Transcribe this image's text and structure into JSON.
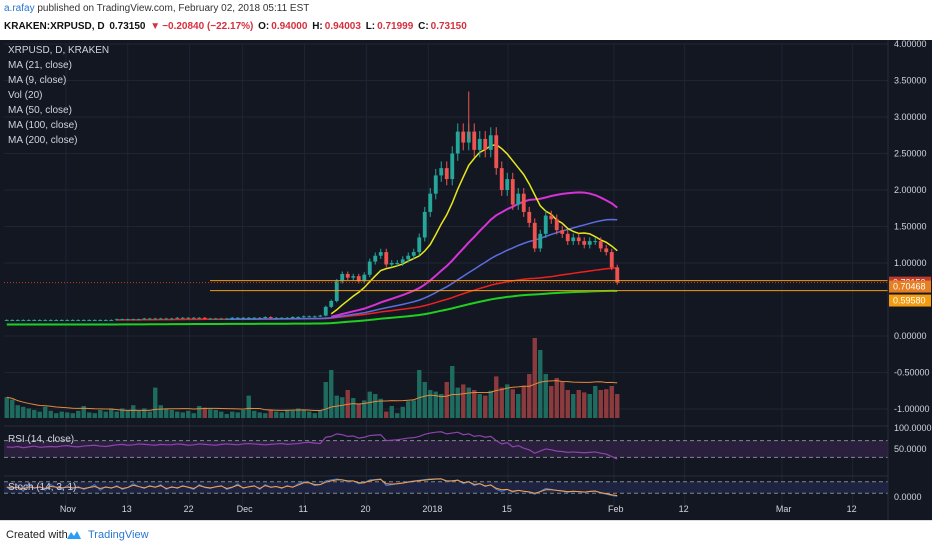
{
  "header": {
    "user": "a.rafay",
    "published_text": "published on TradingView.com, February 02, 2018 05:11 EST",
    "symbol": "KRAKEN:XRPUSD, D",
    "price": "0.73150",
    "arrow": "▼",
    "change": "−0.20840 (−22.17%)",
    "o_label": "O:",
    "o_val": "0.94000",
    "h_label": "H:",
    "h_val": "0.94003",
    "l_label": "L:",
    "l_val": "0.71999",
    "c_label": "C:",
    "c_val": "0.73150"
  },
  "legend": [
    "XRPUSD, D, KRAKEN",
    "MA (21, close)",
    "MA (9, close)",
    "Vol (20)",
    "MA (50, close)",
    "MA (100, close)",
    "MA (200, close)"
  ],
  "panes": {
    "rsi_label": "RSI (14, close)",
    "stoch_label": "Stoch (14, 3, 1)"
  },
  "footer": {
    "created": "Created with",
    "brand": "TradingView"
  },
  "colors": {
    "background": "#131722",
    "grid": "#1f2433",
    "up": "#26a69a",
    "down": "#ef5350",
    "ma21": "#e8e81a",
    "ma50": "#d633d6",
    "ma100": "#5b6ee0",
    "ma200_red": "#ef2020",
    "ma200": "#20d020",
    "rsi": "#8e44ad",
    "stoch_k": "#3a7bd5",
    "stoch_d": "#ff9f40"
  },
  "chart_data": [
    {
      "type": "line",
      "title": "XRPUSD, D, KRAKEN",
      "ylim": [
        -1.15,
        4.0
      ],
      "y_ticks": [
        "4.00000",
        "3.50000",
        "3.00000",
        "2.50000",
        "2.00000",
        "1.50000",
        "1.00000",
        "0.00000",
        "-0.50000",
        "-1.00000"
      ],
      "x_ticks": [
        "Nov",
        "13",
        "22",
        "Dec",
        "11",
        "20",
        "2018",
        "15",
        "Feb",
        "12",
        "Mar",
        "12"
      ],
      "price_labels": [
        "0.73150",
        "0.70468",
        "0.59580"
      ],
      "candles": [
        [
          0.94,
          0.94003,
          0.71999,
          0.7315
        ]
      ],
      "close_series": [
        0.22,
        0.22,
        0.22,
        0.22,
        0.22,
        0.22,
        0.22,
        0.22,
        0.22,
        0.22,
        0.22,
        0.22,
        0.22,
        0.22,
        0.22,
        0.22,
        0.22,
        0.22,
        0.22,
        0.22,
        0.23,
        0.23,
        0.23,
        0.23,
        0.23,
        0.24,
        0.24,
        0.24,
        0.24,
        0.24,
        0.24,
        0.25,
        0.25,
        0.25,
        0.25,
        0.25,
        0.24,
        0.24,
        0.24,
        0.24,
        0.24,
        0.25,
        0.25,
        0.25,
        0.25,
        0.25,
        0.25,
        0.26,
        0.25,
        0.25,
        0.25,
        0.25,
        0.26,
        0.26,
        0.27,
        0.27,
        0.27,
        0.28,
        0.4,
        0.48,
        0.75,
        0.85,
        0.8,
        0.82,
        0.75,
        0.84,
        1.02,
        1.1,
        1.15,
        0.98,
        1.0,
        1.0,
        1.05,
        1.1,
        1.15,
        1.35,
        1.7,
        1.95,
        2.2,
        2.3,
        2.15,
        2.5,
        2.8,
        2.65,
        2.8,
        2.55,
        2.7,
        2.55,
        2.75,
        2.3,
        2.0,
        2.15,
        1.8,
        1.95,
        1.7,
        1.55,
        1.2,
        1.4,
        1.65,
        1.6,
        1.45,
        1.4,
        1.3,
        1.35,
        1.3,
        1.25,
        1.3,
        1.3,
        1.2,
        1.15,
        0.94,
        0.7315
      ],
      "ma21_start": 59,
      "ma50_start": 40,
      "ma100_start": 20,
      "ma200_start": 0
    },
    {
      "type": "line",
      "title": "RSI (14, close)",
      "ylim": [
        0,
        100
      ],
      "y_ticks": [
        "100.0000",
        "50.0000"
      ],
      "levels": [
        70,
        30
      ],
      "values": [
        55,
        54,
        56,
        53,
        55,
        57,
        54,
        55,
        56,
        55,
        57,
        58,
        56,
        55,
        57,
        58,
        59,
        57,
        56,
        58,
        60,
        61,
        59,
        60,
        62,
        61,
        60,
        59,
        61,
        60,
        60,
        62,
        61,
        59,
        60,
        62,
        61,
        60,
        59,
        61,
        62,
        61,
        60,
        62,
        63,
        62,
        61,
        60,
        61,
        62,
        63,
        61,
        62,
        63,
        65,
        66,
        64,
        63,
        78,
        80,
        86,
        84,
        80,
        81,
        76,
        78,
        82,
        83,
        84,
        70,
        71,
        72,
        74,
        76,
        77,
        80,
        85,
        88,
        90,
        91,
        86,
        88,
        90,
        84,
        86,
        80,
        82,
        78,
        80,
        70,
        62,
        65,
        55,
        58,
        52,
        48,
        40,
        45,
        50,
        48,
        45,
        44,
        42,
        43,
        42,
        41,
        42,
        43,
        40,
        38,
        32,
        26
      ]
    },
    {
      "type": "line",
      "title": "Stoch (14, 3, 1)",
      "ylim": [
        0,
        100
      ],
      "y_ticks": [
        "0.0000"
      ],
      "levels": [
        80,
        20
      ],
      "k_values": [
        50,
        40,
        60,
        30,
        70,
        45,
        55,
        35,
        65,
        50,
        40,
        60,
        45,
        55,
        40,
        50,
        65,
        35,
        55,
        45,
        60,
        40,
        50,
        70,
        55,
        45,
        60,
        50,
        65,
        40,
        55,
        45,
        60,
        50,
        40,
        65,
        50,
        45,
        55,
        60,
        40,
        50,
        70,
        45,
        55,
        60,
        40,
        65,
        50,
        55,
        45,
        60,
        50,
        70,
        80,
        75,
        60,
        65,
        85,
        90,
        95,
        90,
        80,
        85,
        70,
        75,
        90,
        92,
        95,
        60,
        65,
        70,
        75,
        80,
        85,
        88,
        92,
        95,
        96,
        97,
        80,
        85,
        90,
        70,
        80,
        60,
        70,
        55,
        65,
        40,
        30,
        40,
        25,
        35,
        30,
        25,
        15,
        30,
        45,
        40,
        35,
        30,
        25,
        30,
        28,
        25,
        30,
        32,
        20,
        15,
        8,
        4
      ],
      "d_values": [
        52,
        48,
        50,
        42,
        53,
        48,
        52,
        45,
        55,
        52,
        48,
        52,
        48,
        50,
        45,
        50,
        55,
        45,
        52,
        48,
        55,
        45,
        50,
        62,
        55,
        48,
        57,
        52,
        60,
        45,
        52,
        48,
        57,
        52,
        45,
        60,
        52,
        48,
        53,
        58,
        45,
        52,
        62,
        48,
        53,
        58,
        45,
        60,
        52,
        55,
        48,
        57,
        52,
        63,
        75,
        75,
        65,
        65,
        78,
        85,
        90,
        90,
        85,
        85,
        75,
        75,
        85,
        90,
        92,
        70,
        68,
        70,
        73,
        78,
        82,
        86,
        89,
        92,
        94,
        95,
        85,
        85,
        88,
        76,
        80,
        66,
        70,
        58,
        63,
        46,
        38,
        40,
        30,
        35,
        30,
        27,
        20,
        28,
        38,
        38,
        35,
        32,
        28,
        30,
        28,
        26,
        29,
        31,
        23,
        18,
        12,
        7
      ]
    },
    {
      "type": "bar",
      "title": "Vol (20)",
      "values": [
        0.26,
        0.23,
        0.16,
        0.14,
        0.12,
        0.1,
        0.08,
        0.14,
        0.09,
        0.06,
        0.08,
        0.07,
        0.06,
        0.09,
        0.15,
        0.07,
        0.06,
        0.1,
        0.08,
        0.12,
        0.08,
        0.12,
        0.1,
        0.16,
        0.09,
        0.12,
        0.08,
        0.38,
        0.16,
        0.12,
        0.1,
        0.08,
        0.07,
        0.09,
        0.06,
        0.15,
        0.13,
        0.11,
        0.1,
        0.08,
        0.05,
        0.08,
        0.07,
        0.1,
        0.28,
        0.09,
        0.07,
        0.06,
        0.1,
        0.08,
        0.07,
        0.1,
        0.09,
        0.12,
        0.1,
        0.08,
        0.06,
        0.1,
        0.45,
        0.6,
        0.28,
        0.26,
        0.35,
        0.25,
        0.18,
        0.22,
        0.33,
        0.3,
        0.24,
        0.08,
        0.15,
        0.06,
        0.14,
        0.21,
        0.22,
        0.6,
        0.45,
        0.35,
        0.33,
        0.3,
        0.45,
        0.65,
        0.38,
        0.42,
        0.38,
        0.35,
        0.3,
        0.28,
        0.34,
        0.52,
        0.38,
        0.42,
        0.36,
        0.3,
        0.4,
        0.55,
        1.0,
        0.85,
        0.55,
        0.4,
        0.5,
        0.45,
        0.35,
        0.3,
        0.35,
        0.32,
        0.3,
        0.4,
        0.35,
        0.36,
        0.4,
        0.3
      ]
    }
  ]
}
